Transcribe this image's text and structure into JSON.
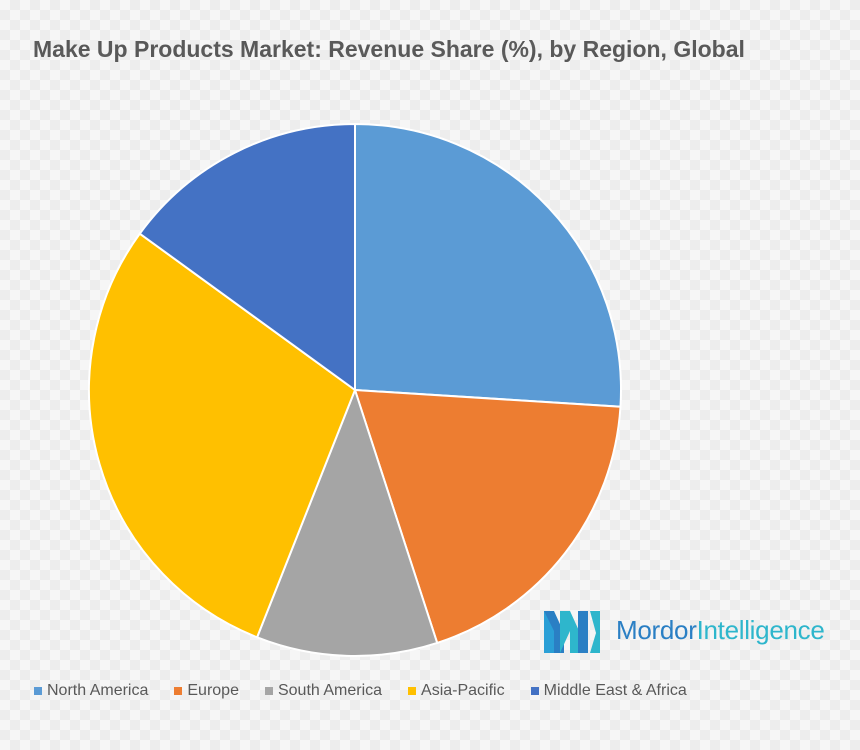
{
  "chart_data": {
    "type": "pie",
    "title": "Make Up Products Market: Revenue Share (%), by Region, Global",
    "categories": [
      "North America",
      "Europe",
      "South America",
      "Asia-Pacific",
      "Middle East & Africa"
    ],
    "values": [
      26,
      19,
      11,
      29,
      15
    ],
    "colors": [
      "#5b9bd5",
      "#ed7d31",
      "#a5a5a5",
      "#ffc000",
      "#4472c4"
    ],
    "legend_position": "bottom",
    "start_angle": "12 o'clock, clockwise"
  },
  "logo": {
    "name": "Mordor Intelligence",
    "word1": "Mordor",
    "word2": "Intelligence"
  }
}
